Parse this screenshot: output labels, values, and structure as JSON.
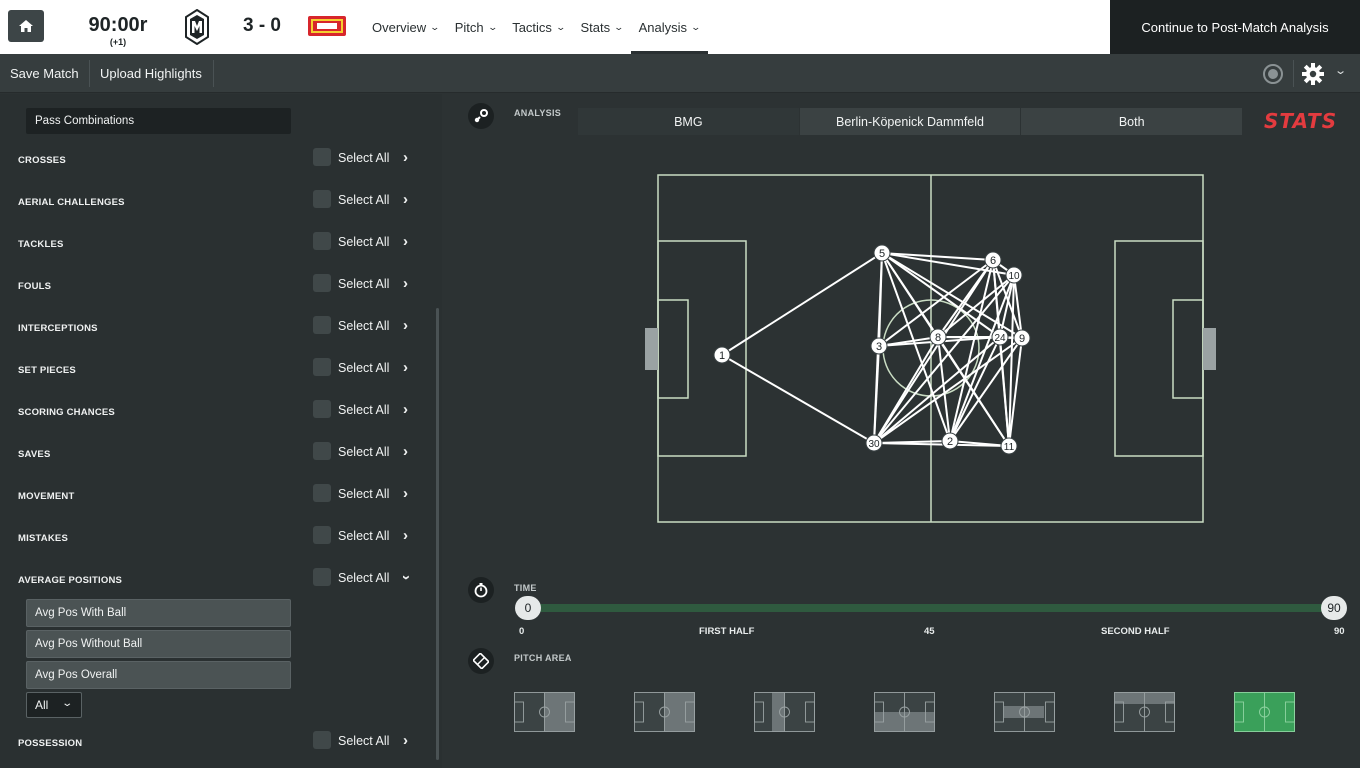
{
  "header": {
    "clock": "90:00r",
    "clock_extra": "(+1)",
    "score": "3 - 0",
    "nav": [
      {
        "label": "Overview"
      },
      {
        "label": "Pitch"
      },
      {
        "label": "Tactics"
      },
      {
        "label": "Stats"
      },
      {
        "label": "Analysis"
      }
    ],
    "active_nav": "Analysis",
    "continue_label": "Continue to Post-Match Analysis"
  },
  "subbar": {
    "save_label": "Save Match",
    "upload_label": "Upload Highlights"
  },
  "left_panel": {
    "selected_filter": "Pass Combinations",
    "select_all_label": "Select All",
    "categories": [
      {
        "label": "CROSSES",
        "expanded": false
      },
      {
        "label": "AERIAL CHALLENGES",
        "expanded": false
      },
      {
        "label": "TACKLES",
        "expanded": false
      },
      {
        "label": "FOULS",
        "expanded": false
      },
      {
        "label": "INTERCEPTIONS",
        "expanded": false
      },
      {
        "label": "SET PIECES",
        "expanded": false
      },
      {
        "label": "SCORING CHANCES",
        "expanded": false
      },
      {
        "label": "SAVES",
        "expanded": false
      },
      {
        "label": "MOVEMENT",
        "expanded": false
      },
      {
        "label": "MISTAKES",
        "expanded": false
      },
      {
        "label": "AVERAGE POSITIONS",
        "expanded": true
      }
    ],
    "avg_options": [
      "Avg Pos With Ball",
      "Avg Pos Without Ball",
      "Avg Pos Overall"
    ],
    "all_select": "All",
    "possession_label": "POSSESSION"
  },
  "analysis": {
    "label": "ANALYSIS",
    "tabs": [
      "BMG",
      "Berlin-Köpenick Dammfeld",
      "Both"
    ],
    "active_tab": "BMG",
    "stats_logo": "STATS"
  },
  "pitch": {
    "players": [
      {
        "number": "1",
        "role": "goalkeeper"
      },
      {
        "number": "5"
      },
      {
        "number": "3"
      },
      {
        "number": "30"
      },
      {
        "number": "8"
      },
      {
        "number": "2"
      },
      {
        "number": "6"
      },
      {
        "number": "10"
      },
      {
        "number": "24"
      },
      {
        "number": "9"
      },
      {
        "number": "11"
      }
    ]
  },
  "time": {
    "label": "TIME",
    "start": "0",
    "end": "90",
    "tick_start": "0",
    "first_half": "FIRST HALF",
    "mid": "45",
    "second_half": "SECOND HALF",
    "tick_end": "90"
  },
  "pitch_area": {
    "label": "PITCH AREA",
    "selected_index": 6
  },
  "colors": {
    "accent_green": "#3aa05a",
    "stats_red": "#e33b3f",
    "pitch_line": "#c9dcc3"
  }
}
